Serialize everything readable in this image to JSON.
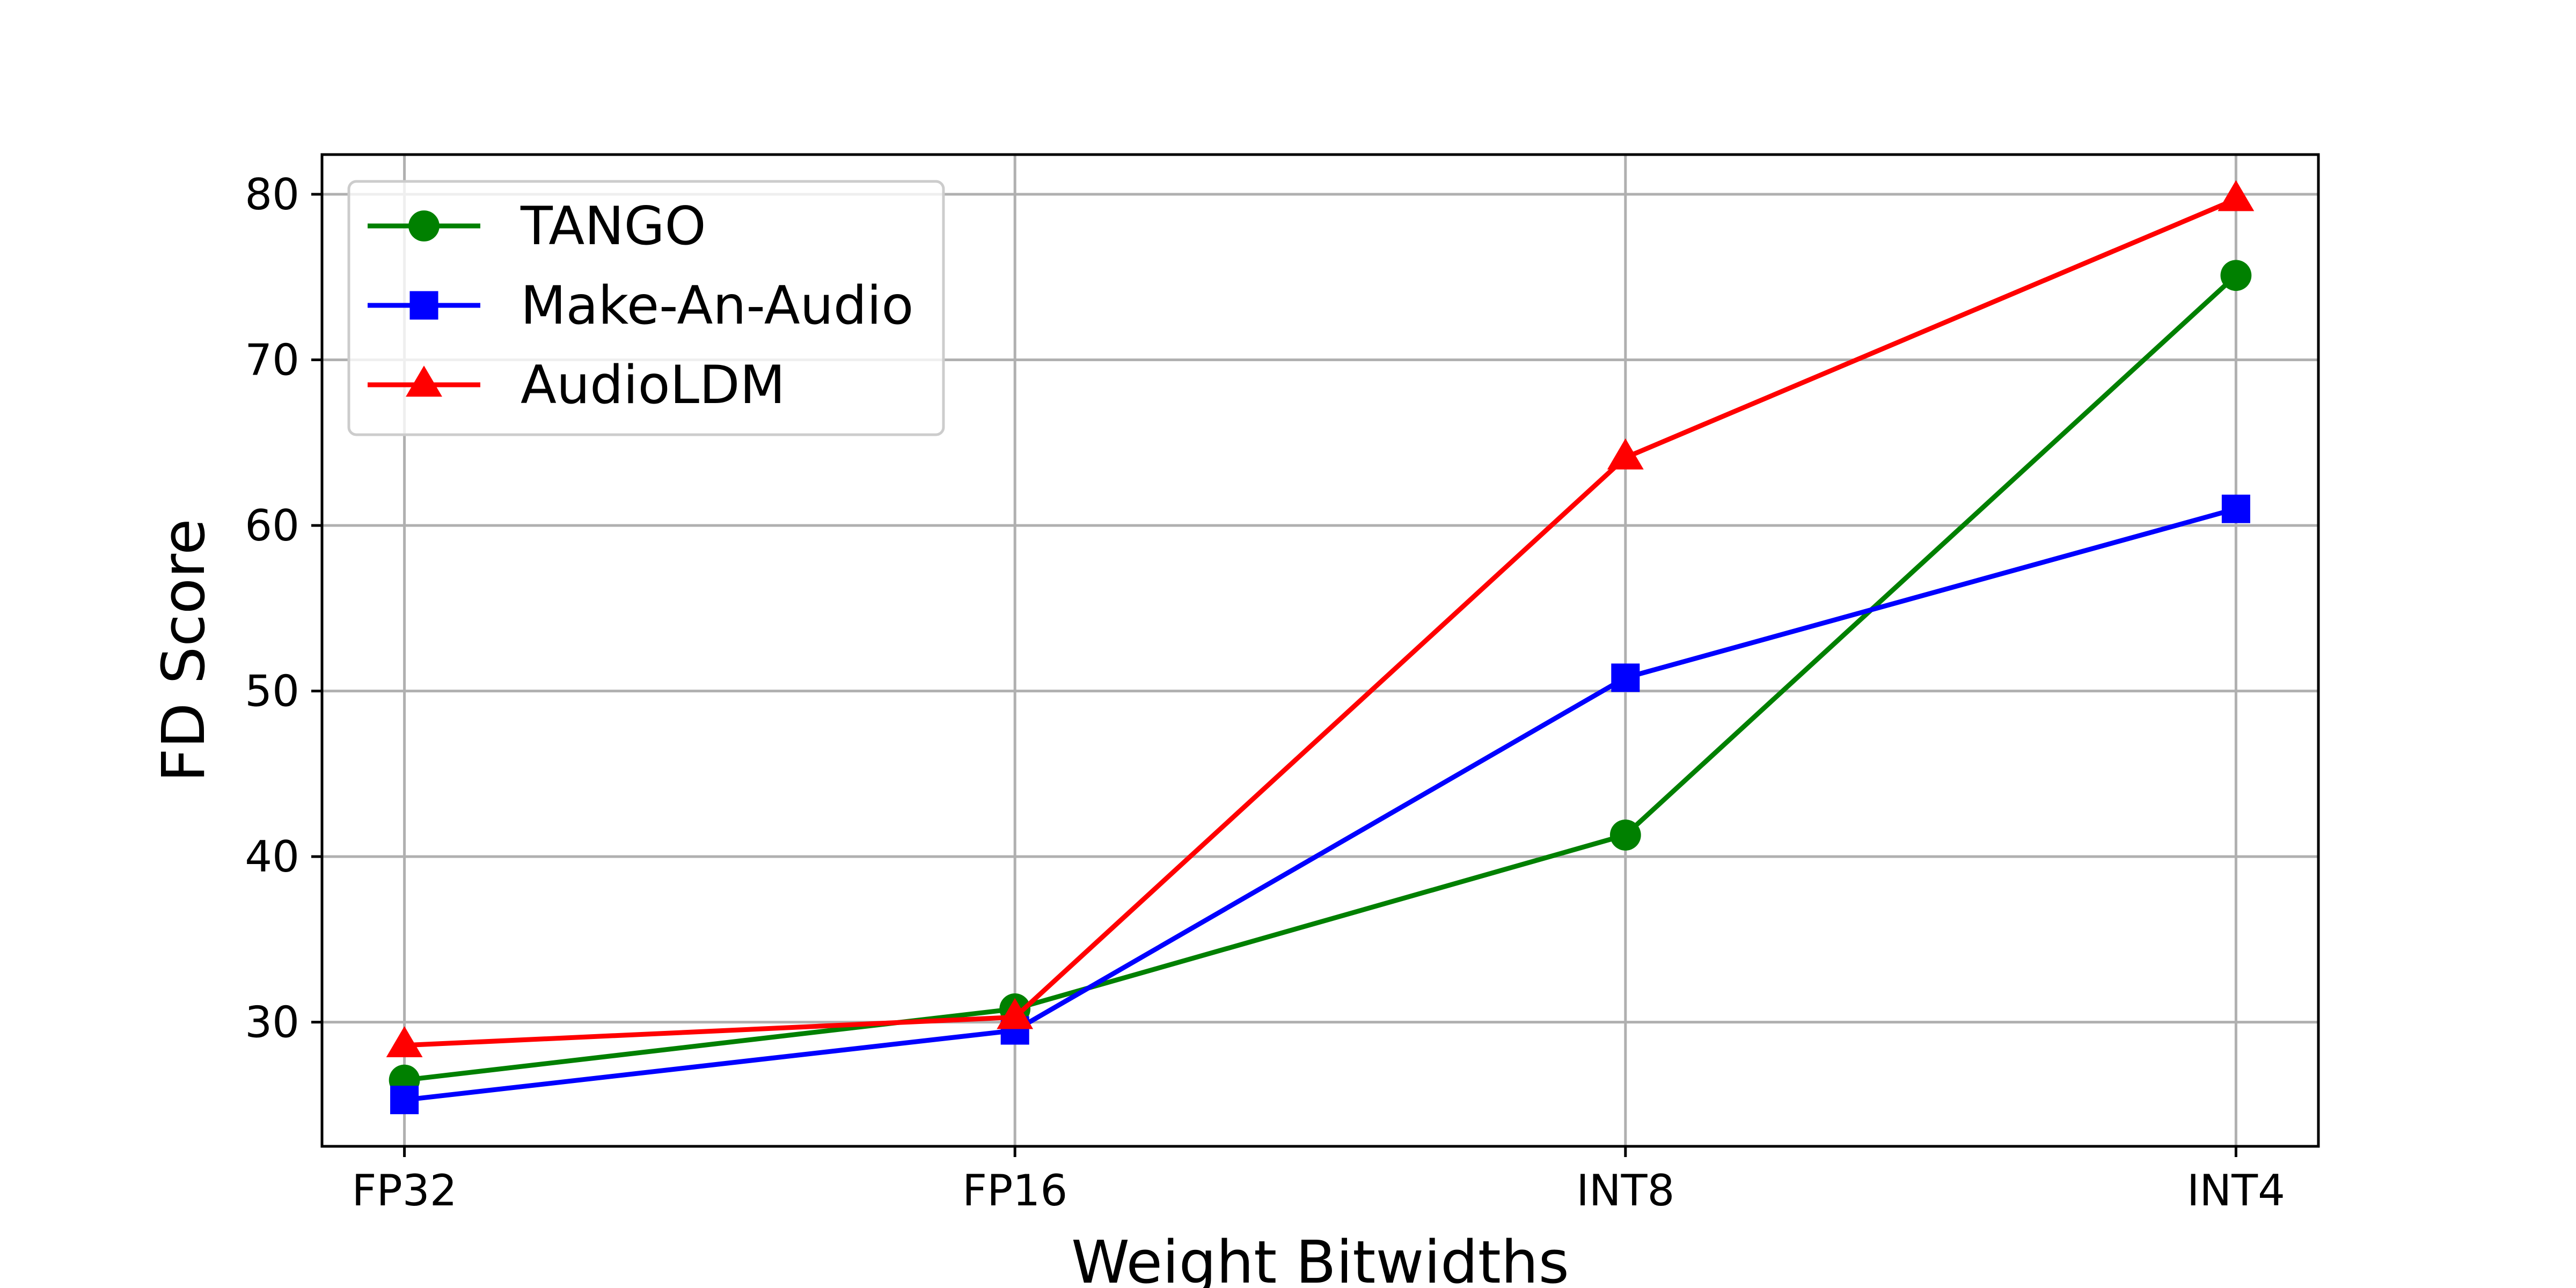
{
  "chart_data": {
    "type": "line",
    "categories": [
      "FP32",
      "FP16",
      "INT8",
      "INT4"
    ],
    "series": [
      {
        "name": "TANGO",
        "values": [
          26.5,
          30.8,
          41.3,
          75.1
        ],
        "color": "#008000",
        "marker": "circle"
      },
      {
        "name": "Make-An-Audio",
        "values": [
          25.3,
          29.5,
          50.8,
          61.0
        ],
        "color": "#0000ff",
        "marker": "square"
      },
      {
        "name": "AudioLDM",
        "values": [
          28.6,
          30.3,
          64.1,
          79.7
        ],
        "color": "#ff0000",
        "marker": "triangle"
      }
    ],
    "xlabel": "Weight Bitwidths",
    "ylabel": "FD Score",
    "ylim": [
      22.5,
      82.4
    ],
    "yticks": [
      30,
      40,
      50,
      60,
      70,
      80
    ],
    "grid": true,
    "legend": "top-left"
  }
}
